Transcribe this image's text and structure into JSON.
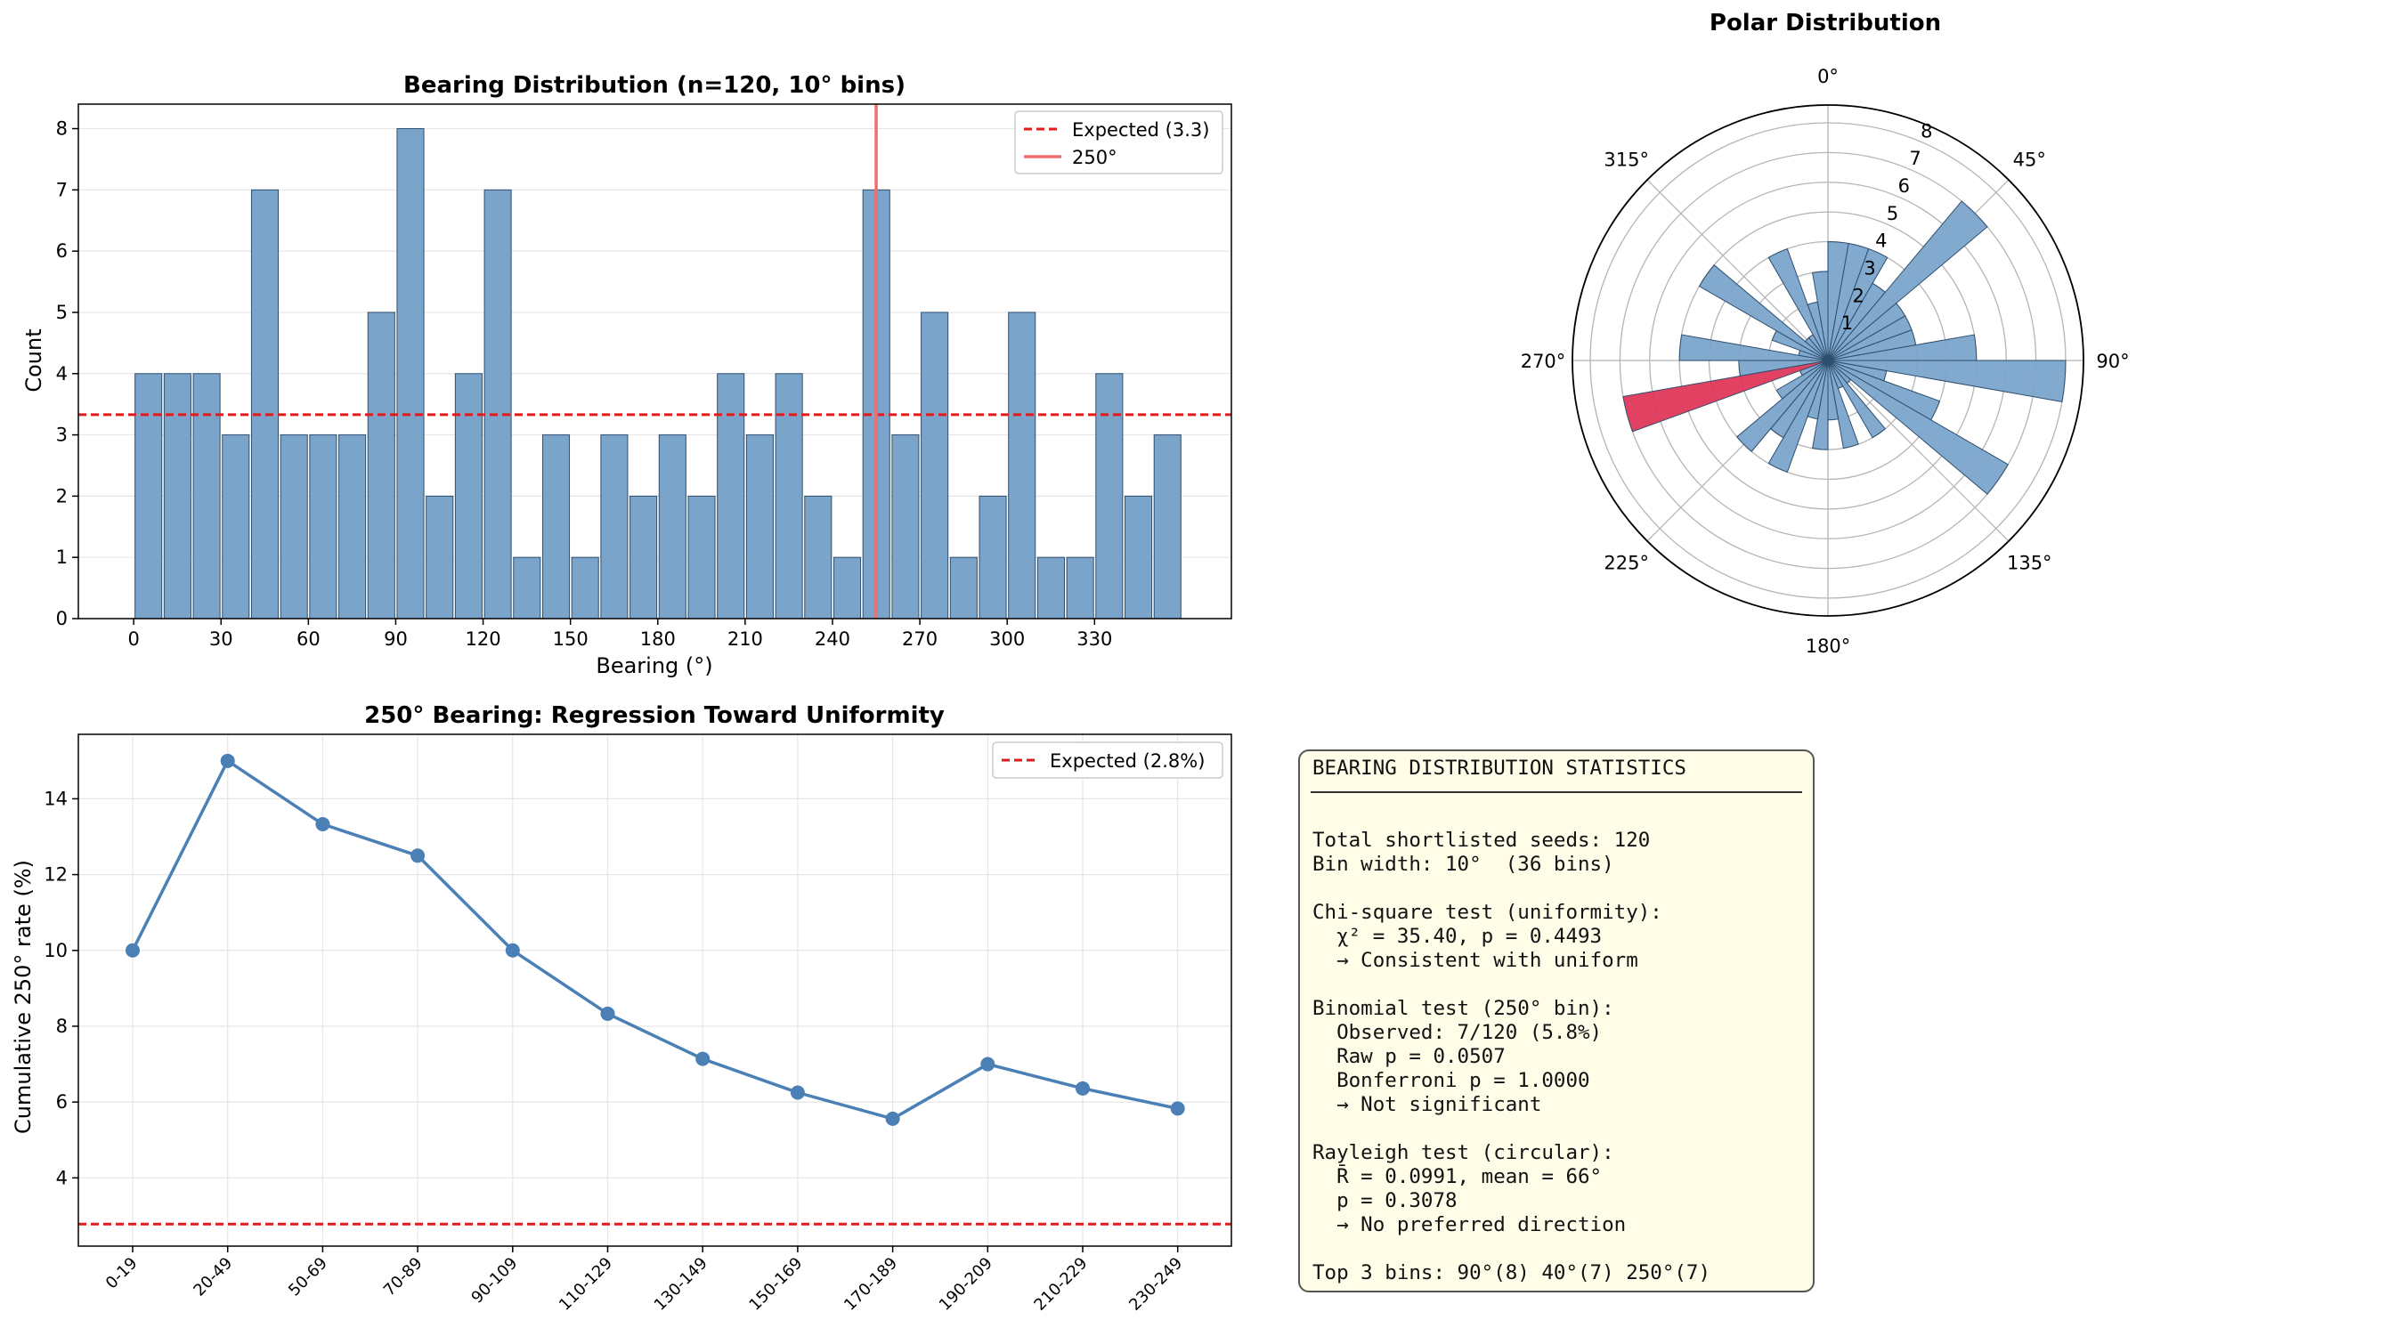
{
  "colors": {
    "bar": "#7ba4cb",
    "bar_edge": "#2f4f6f",
    "highlight": "#e0385a",
    "expected": "#e01b1b",
    "marker": "#f26d6d",
    "line": "#4a80b5",
    "grid": "#e6e6e6"
  },
  "chart_data": [
    {
      "type": "bar",
      "title": "Bearing Distribution (n=120, 10° bins)",
      "xlabel": "Bearing (°)",
      "ylabel": "Count",
      "bin_starts": [
        0,
        10,
        20,
        30,
        40,
        50,
        60,
        70,
        80,
        90,
        100,
        110,
        120,
        130,
        140,
        150,
        160,
        170,
        180,
        190,
        200,
        210,
        220,
        230,
        240,
        250,
        260,
        270,
        280,
        290,
        300,
        310,
        320,
        330,
        340,
        350
      ],
      "values": [
        4,
        4,
        4,
        3,
        7,
        3,
        3,
        3,
        5,
        8,
        2,
        4,
        7,
        1,
        3,
        1,
        3,
        2,
        3,
        2,
        4,
        3,
        4,
        2,
        1,
        7,
        3,
        5,
        1,
        2,
        5,
        1,
        1,
        4,
        2,
        3
      ],
      "bin_width": 10,
      "xlim": [
        -19,
        377
      ],
      "ylim": [
        0,
        8.4
      ],
      "xticks": [
        0,
        30,
        60,
        90,
        120,
        150,
        180,
        210,
        240,
        270,
        300,
        330
      ],
      "yticks": [
        0,
        1,
        2,
        3,
        4,
        5,
        6,
        7,
        8
      ],
      "expected_line": 3.33,
      "marker_line": 255,
      "legend": [
        "Expected (3.3)",
        "250°"
      ],
      "legend_position": "top-right"
    },
    {
      "type": "polar-bar",
      "title": "Polar Distribution",
      "angle_labels": [
        "0°",
        "45°",
        "90°",
        "135°",
        "180°",
        "225°",
        "270°",
        "315°"
      ],
      "radial_ticks": [
        1,
        2,
        3,
        4,
        5,
        6,
        7,
        8
      ],
      "rmax": 8.6,
      "values": [
        4,
        4,
        4,
        3,
        7,
        3,
        3,
        3,
        5,
        8,
        2,
        4,
        7,
        1,
        3,
        1,
        3,
        2,
        3,
        2,
        4,
        3,
        4,
        2,
        1,
        7,
        3,
        5,
        1,
        2,
        5,
        1,
        1,
        4,
        2,
        3
      ],
      "highlight_bin": 25
    },
    {
      "type": "line",
      "title": "250° Bearing: Regression Toward Uniformity",
      "ylabel": "Cumulative 250° rate (%)",
      "categories": [
        "0-19",
        "20-49",
        "50-69",
        "70-89",
        "90-109",
        "110-129",
        "130-149",
        "150-169",
        "170-189",
        "190-209",
        "210-229",
        "230-249"
      ],
      "values": [
        10.0,
        15.0,
        13.33,
        12.5,
        10.0,
        8.33,
        7.14,
        6.25,
        5.56,
        7.0,
        6.36,
        5.83
      ],
      "ylim": [
        2.2,
        15.7
      ],
      "yticks": [
        4,
        6,
        8,
        10,
        12,
        14
      ],
      "expected_line": 2.78,
      "legend": [
        "Expected (2.8%)"
      ],
      "legend_position": "top-right"
    }
  ],
  "stats": {
    "title": "BEARING DISTRIBUTION STATISTICS",
    "lines": [
      "",
      "Total shortlisted seeds: 120",
      "Bin width: 10°  (36 bins)",
      "",
      "Chi-square test (uniformity):",
      "  χ² = 35.40, p = 0.4493",
      "  → Consistent with uniform",
      "",
      "Binomial test (250° bin):",
      "  Observed: 7/120 (5.8%)",
      "  Raw p = 0.0507",
      "  Bonferroni p = 1.0000",
      "  → Not significant",
      "",
      "Rayleigh test (circular):",
      "  R̄ = 0.0991, mean = 66°",
      "  p = 0.3078",
      "  → No preferred direction",
      "",
      "Top 3 bins: 90°(8) 40°(7) 250°(7)"
    ]
  }
}
